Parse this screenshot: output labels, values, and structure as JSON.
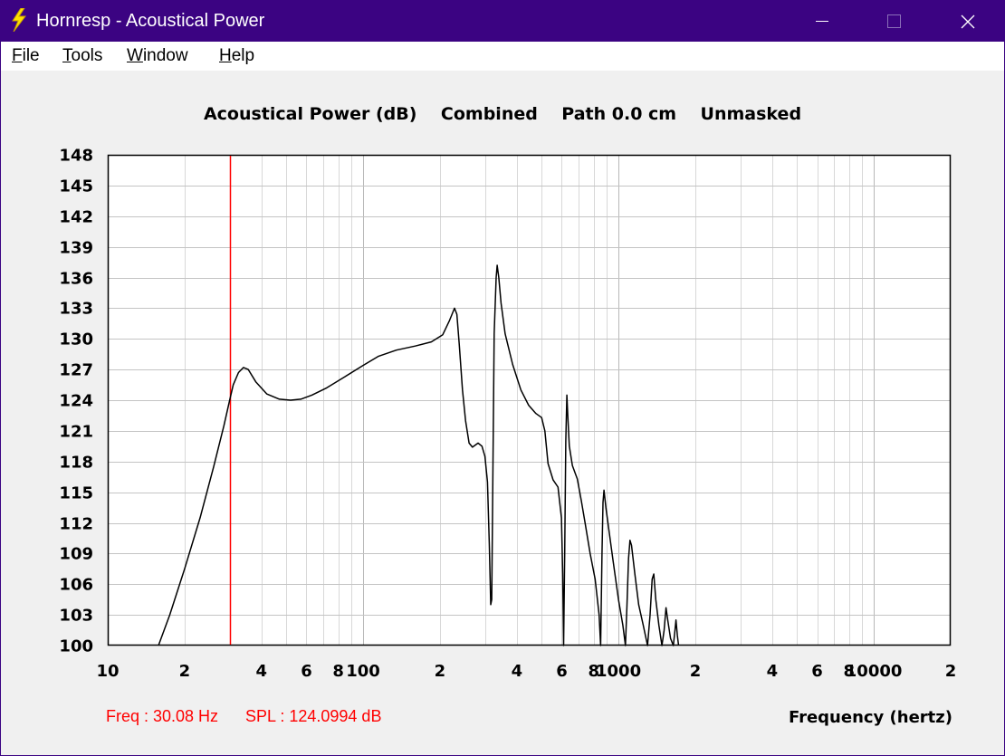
{
  "window": {
    "title": "Hornresp - Acoustical Power",
    "title_bar_color": "#3b0382",
    "icon": "lightning-bolt-icon",
    "controls": [
      "minimize-icon",
      "maximize-icon",
      "close-icon"
    ]
  },
  "menu": {
    "items": [
      {
        "label": "File",
        "accel": "F",
        "rest": "ile"
      },
      {
        "label": "Tools",
        "accel": "T",
        "rest": "ools"
      },
      {
        "label": "Window",
        "accel": "W",
        "rest": "indow"
      },
      {
        "label": "Help",
        "accel": "H",
        "rest": "elp"
      }
    ]
  },
  "readout": {
    "freq": "Freq : 30.08 Hz",
    "spl": "SPL : 124.0994 dB",
    "color": "#ff0000"
  },
  "chart_data": {
    "type": "line",
    "title": "Acoustical Power (dB)    Combined    Path 0.0 cm    Unmasked",
    "xlabel": "Frequency (hertz)",
    "ylabel": "",
    "x_scale": "log",
    "xlim": [
      10,
      20000
    ],
    "ylim": [
      100,
      148
    ],
    "y_ticks": [
      "148",
      "145",
      "142",
      "139",
      "136",
      "133",
      "130",
      "127",
      "124",
      "121",
      "118",
      "115",
      "112",
      "109",
      "106",
      "103",
      "100"
    ],
    "x_ticks": [
      {
        "value": 10,
        "label": "10"
      },
      {
        "value": 20,
        "label": "2"
      },
      {
        "value": 40,
        "label": "4"
      },
      {
        "value": 60,
        "label": "6"
      },
      {
        "value": 80,
        "label": "8"
      },
      {
        "value": 100,
        "label": "100"
      },
      {
        "value": 200,
        "label": "2"
      },
      {
        "value": 400,
        "label": "4"
      },
      {
        "value": 600,
        "label": "6"
      },
      {
        "value": 800,
        "label": "8"
      },
      {
        "value": 1000,
        "label": "1000"
      },
      {
        "value": 2000,
        "label": "2"
      },
      {
        "value": 4000,
        "label": "4"
      },
      {
        "value": 6000,
        "label": "6"
      },
      {
        "value": 8000,
        "label": "8"
      },
      {
        "value": 10000,
        "label": "10000"
      },
      {
        "value": 20000,
        "label": "2"
      }
    ],
    "grid": true,
    "line_color": "#000000",
    "marker": {
      "x": 30.08,
      "y": 124.0994,
      "color": "#ff0000"
    },
    "series": [
      {
        "points": [
          [
            15.8,
            100
          ],
          [
            17.5,
            103
          ],
          [
            20,
            107.5
          ],
          [
            23,
            112.5
          ],
          [
            26,
            117.5
          ],
          [
            28.5,
            121.5
          ],
          [
            30.08,
            124.1
          ],
          [
            31,
            125.5
          ],
          [
            32.5,
            126.7
          ],
          [
            34,
            127.2
          ],
          [
            35.5,
            127
          ],
          [
            38,
            125.8
          ],
          [
            42,
            124.6
          ],
          [
            47,
            124.1
          ],
          [
            52,
            124
          ],
          [
            57,
            124.1
          ],
          [
            63,
            124.5
          ],
          [
            72,
            125.2
          ],
          [
            85,
            126.3
          ],
          [
            100,
            127.4
          ],
          [
            115,
            128.3
          ],
          [
            135,
            128.9
          ],
          [
            160,
            129.3
          ],
          [
            185,
            129.7
          ],
          [
            205,
            130.4
          ],
          [
            218,
            131.8
          ],
          [
            228,
            133
          ],
          [
            233,
            132.4
          ],
          [
            238,
            129.5
          ],
          [
            245,
            125
          ],
          [
            252,
            122
          ],
          [
            260,
            119.8
          ],
          [
            268,
            119.4
          ],
          [
            282,
            119.8
          ],
          [
            292,
            119.5
          ],
          [
            300,
            118.5
          ],
          [
            307,
            116
          ],
          [
            312,
            110
          ],
          [
            316,
            104
          ],
          [
            319,
            104.5
          ],
          [
            322,
            116
          ],
          [
            326,
            130.5
          ],
          [
            332,
            136
          ],
          [
            335,
            137.2
          ],
          [
            340,
            136
          ],
          [
            347,
            133.5
          ],
          [
            360,
            130.5
          ],
          [
            385,
            127.5
          ],
          [
            415,
            125
          ],
          [
            445,
            123.5
          ],
          [
            475,
            122.7
          ],
          [
            500,
            122.3
          ],
          [
            515,
            121
          ],
          [
            530,
            117.8
          ],
          [
            555,
            116.2
          ],
          [
            580,
            115.5
          ],
          [
            598,
            112.5
          ],
          [
            605,
            107
          ],
          [
            610,
            100
          ],
          [
            616,
            109
          ],
          [
            622,
            120
          ],
          [
            628,
            124.5
          ],
          [
            633,
            122.5
          ],
          [
            642,
            119.5
          ],
          [
            660,
            117.6
          ],
          [
            690,
            116.3
          ],
          [
            715,
            114.2
          ],
          [
            740,
            112
          ],
          [
            775,
            109
          ],
          [
            810,
            106.5
          ],
          [
            840,
            103
          ],
          [
            852,
            100
          ],
          [
            862,
            109
          ],
          [
            870,
            114
          ],
          [
            878,
            115.2
          ],
          [
            893,
            113.5
          ],
          [
            915,
            111.5
          ],
          [
            950,
            108.5
          ],
          [
            1000,
            104.5
          ],
          [
            1040,
            102
          ],
          [
            1065,
            100
          ],
          [
            1080,
            104
          ],
          [
            1095,
            108.5
          ],
          [
            1110,
            110.3
          ],
          [
            1125,
            109.8
          ],
          [
            1160,
            107
          ],
          [
            1200,
            104
          ],
          [
            1250,
            102
          ],
          [
            1300,
            100
          ],
          [
            1330,
            103
          ],
          [
            1355,
            106.5
          ],
          [
            1375,
            107
          ],
          [
            1400,
            104.5
          ],
          [
            1440,
            102
          ],
          [
            1480,
            100
          ],
          [
            1510,
            101.5
          ],
          [
            1535,
            103.7
          ],
          [
            1560,
            102.5
          ],
          [
            1600,
            100.7
          ],
          [
            1640,
            100
          ],
          [
            1665,
            101.5
          ],
          [
            1680,
            102.5
          ],
          [
            1700,
            101
          ],
          [
            1720,
            100
          ]
        ]
      }
    ]
  }
}
